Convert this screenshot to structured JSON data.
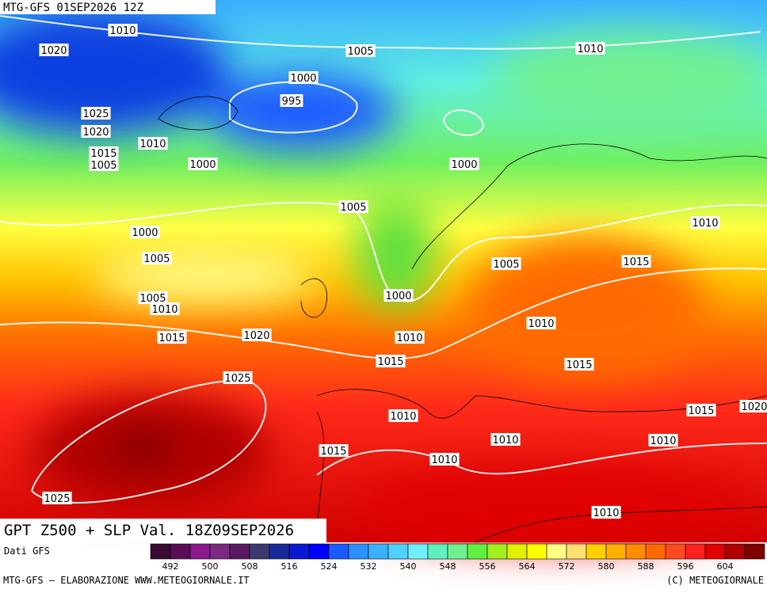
{
  "header": {
    "title": "MTG-GFS 01SEP2026 12Z"
  },
  "map": {
    "caption": "GPT Z500 + SLP Val. 18Z09SEP2026",
    "isobar_labels": [
      "1010",
      "1020",
      "1005",
      "1010",
      "1000",
      "995",
      "1025",
      "1020",
      "1010",
      "1015",
      "1005",
      "1000",
      "1000",
      "1005",
      "1000",
      "1010",
      "1005",
      "1015",
      "1005",
      "1005",
      "1010",
      "1000",
      "1010",
      "1015",
      "1020",
      "1010",
      "1015",
      "1015",
      "1025",
      "1015",
      "1020",
      "1010",
      "1010",
      "1010",
      "1015",
      "1010",
      "1025",
      "1010"
    ]
  },
  "legend": {
    "source": "Dati GFS",
    "labels": [
      "492",
      "500",
      "508",
      "516",
      "524",
      "532",
      "540",
      "548",
      "556",
      "564",
      "572",
      "580",
      "588",
      "596",
      "604"
    ],
    "colors": [
      "#3a0a30",
      "#5a0e55",
      "#8b1a8e",
      "#7a2a80",
      "#5a1a60",
      "#3a3a70",
      "#1a2a9a",
      "#0a1ad0",
      "#0000ff",
      "#1a5aff",
      "#2a90ff",
      "#3ab0ff",
      "#50d0ff",
      "#70f0ff",
      "#60f0c0",
      "#70f090",
      "#60f040",
      "#a0f020",
      "#e0f000",
      "#ffff00",
      "#ffff80",
      "#ffe070",
      "#ffd000",
      "#ffb000",
      "#ff8c00",
      "#ff6a00",
      "#ff4a20",
      "#ff2020",
      "#e00000",
      "#b00000",
      "#800000"
    ]
  },
  "footer": {
    "left": "MTG-GFS – ELABORAZIONE WWW.METEOGIORNALE.IT",
    "right": "(C) METEOGIORNALE"
  }
}
